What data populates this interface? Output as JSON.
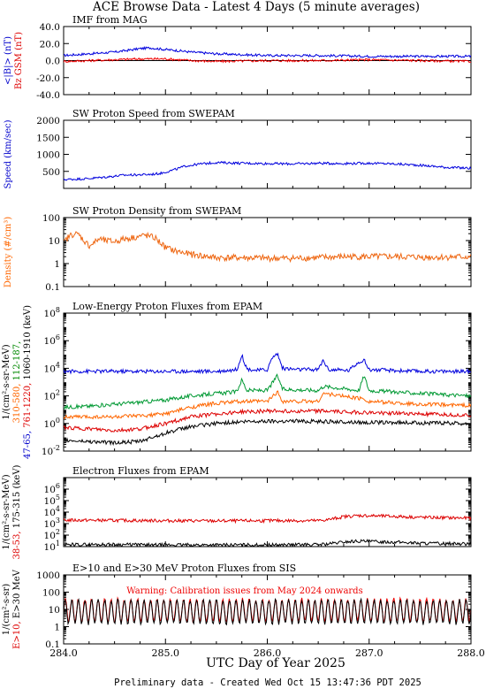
{
  "figure": {
    "title": "ACE Browse Data - Latest 4 Days (5 minute averages)",
    "xlabel": "UTC Day of Year 2025",
    "footer": "Preliminary data - Created Wed Oct 15 13:47:36 PDT 2025",
    "x_range": [
      284.0,
      288.0
    ],
    "x_ticks": [
      "284.0",
      "285.0",
      "286.0",
      "287.0",
      "288.0"
    ]
  },
  "chart_data": [
    {
      "type": "line",
      "title": "IMF from MAG",
      "ylabel_lines": [
        {
          "text": "<|B|> (nT)",
          "color": "#0000cc"
        },
        {
          "text": "Bz GSM (nT)",
          "color": "#dd0000"
        }
      ],
      "scale": "linear",
      "ylim": [
        -40.0,
        40.0
      ],
      "y_ticks": [
        "-40.0",
        "-20.0",
        "0.0",
        "20.0",
        "40.0"
      ],
      "zero_line": true,
      "series": [
        {
          "color": "#0000dd",
          "x": [
            284.0,
            284.25,
            284.5,
            284.75,
            284.85,
            285.0,
            285.1,
            285.25,
            285.5,
            285.75,
            286.0,
            286.5,
            287.0,
            287.5,
            288.0
          ],
          "y": [
            6,
            8,
            10,
            14,
            15,
            13,
            12,
            10,
            8,
            7,
            6,
            6,
            5,
            5,
            5
          ]
        },
        {
          "color": "#ee0000",
          "x": [
            284.0,
            284.25,
            284.5,
            284.75,
            285.0,
            285.25,
            285.5,
            286.0,
            286.5,
            287.0,
            287.5,
            288.0
          ],
          "y": [
            -1,
            0,
            1,
            2,
            2,
            0,
            -1,
            0,
            0,
            1,
            0,
            -1
          ]
        }
      ]
    },
    {
      "type": "line",
      "title": "SW Proton Speed from SWEPAM",
      "ylabel_lines": [
        {
          "text": "Speed (km/sec)",
          "color": "#0000cc"
        }
      ],
      "scale": "linear",
      "ylim": [
        0,
        2000
      ],
      "y_ticks": [
        "500",
        "1000",
        "1500",
        "2000"
      ],
      "series": [
        {
          "color": "#0000dd",
          "x": [
            284.0,
            284.1,
            284.25,
            284.4,
            284.5,
            284.6,
            284.75,
            284.85,
            284.95,
            285.0,
            285.1,
            285.2,
            285.35,
            285.5,
            285.75,
            286.0,
            286.25,
            286.5,
            286.75,
            287.0,
            287.25,
            287.5,
            287.75,
            288.0
          ],
          "y": [
            260,
            270,
            290,
            330,
            360,
            390,
            400,
            410,
            440,
            480,
            560,
            660,
            720,
            760,
            740,
            730,
            720,
            740,
            730,
            740,
            720,
            680,
            620,
            590
          ]
        }
      ]
    },
    {
      "type": "line",
      "title": "SW Proton Density from SWEPAM",
      "ylabel_lines": [
        {
          "text": "Density (#/cm³)",
          "color": "#ff6600"
        }
      ],
      "scale": "log",
      "ylim": [
        0.1,
        100
      ],
      "y_ticks": [
        "0.1",
        "1",
        "10",
        "100"
      ],
      "series": [
        {
          "color": "#ee6611",
          "x": [
            284.0,
            284.05,
            284.1,
            284.15,
            284.2,
            284.25,
            284.3,
            284.35,
            284.4,
            284.5,
            284.6,
            284.7,
            284.8,
            284.9,
            285.0,
            285.1,
            285.25,
            285.5,
            285.75,
            286.0,
            286.25,
            286.5,
            286.75,
            287.0,
            287.25,
            287.5,
            287.75,
            288.0
          ],
          "y": [
            8,
            15,
            20,
            18,
            10,
            6,
            8,
            12,
            10,
            9,
            12,
            14,
            17,
            13,
            5,
            3.5,
            2.5,
            1.8,
            1.8,
            1.7,
            1.7,
            1.8,
            2.0,
            2.0,
            2.0,
            1.9,
            1.9,
            2.0
          ]
        }
      ]
    },
    {
      "type": "line",
      "title": "Low-Energy Proton Fluxes from EPAM",
      "ylabel_lines": [
        {
          "text": "1/(cm²-s-sr-MeV)",
          "color": "#000000"
        },
        {
          "text": "310-580,",
          "color": "#ff6600"
        },
        {
          "text": "112-187,",
          "color": "#008800"
        },
        {
          "text": "47-65,",
          "color": "#0000cc"
        },
        {
          "text": "1060-1910 (keV)",
          "color": "#000000"
        },
        {
          "text": "761-1220,",
          "color": "#dd0000"
        }
      ],
      "scale": "log",
      "ylim": [
        0.01,
        100000000
      ],
      "y_ticks": [
        "10^-2",
        "10^0",
        "10^2",
        "10^4",
        "10^6",
        "10^8"
      ],
      "series": [
        {
          "name": "47-65",
          "color": "#0000dd",
          "x": [
            284.0,
            284.5,
            285.0,
            285.5,
            285.7,
            285.75,
            285.8,
            285.9,
            286.0,
            286.05,
            286.1,
            286.15,
            286.3,
            286.5,
            286.55,
            286.6,
            286.8,
            286.9,
            286.95,
            287.0,
            287.2,
            287.5,
            288.0
          ],
          "y": [
            6000,
            6000,
            6000,
            6000,
            8000,
            90000,
            9000,
            7000,
            8000,
            60000,
            120000,
            10000,
            8000,
            8000,
            40000,
            8000,
            7000,
            30000,
            40000,
            8000,
            7000,
            6000,
            6000
          ]
        },
        {
          "name": "112-187",
          "color": "#009933",
          "x": [
            284.0,
            284.25,
            284.5,
            284.75,
            285.0,
            285.25,
            285.5,
            285.7,
            285.75,
            285.8,
            286.0,
            286.1,
            286.15,
            286.5,
            286.55,
            286.9,
            286.95,
            287.0,
            287.5,
            288.0
          ],
          "y": [
            15,
            18,
            25,
            35,
            50,
            100,
            150,
            200,
            1500,
            250,
            250,
            3000,
            300,
            250,
            500,
            250,
            3000,
            250,
            150,
            100
          ]
        },
        {
          "name": "310-580",
          "color": "#ff6600",
          "x": [
            284.0,
            284.25,
            284.5,
            284.75,
            285.0,
            285.25,
            285.5,
            285.75,
            286.0,
            286.1,
            286.15,
            286.5,
            286.55,
            286.95,
            287.0,
            287.5,
            288.0
          ],
          "y": [
            3,
            3,
            3,
            3.5,
            5,
            15,
            30,
            40,
            40,
            200,
            40,
            40,
            150,
            60,
            40,
            25,
            20
          ]
        },
        {
          "name": "761-1220",
          "color": "#dd0000",
          "x": [
            284.0,
            284.25,
            284.5,
            284.75,
            285.0,
            285.25,
            285.5,
            285.75,
            286.0,
            286.25,
            286.5,
            286.75,
            287.0,
            287.5,
            288.0
          ],
          "y": [
            0.5,
            0.4,
            0.3,
            0.4,
            1,
            3,
            5,
            7,
            8,
            8,
            8,
            7,
            6,
            5,
            4
          ]
        },
        {
          "name": "1060-1910",
          "color": "#000000",
          "x": [
            284.0,
            284.25,
            284.5,
            284.75,
            285.0,
            285.25,
            285.5,
            285.75,
            286.0,
            286.25,
            286.5,
            286.75,
            287.0,
            287.5,
            288.0
          ],
          "y": [
            0.06,
            0.05,
            0.04,
            0.05,
            0.2,
            0.6,
            1,
            1.3,
            1.5,
            1.5,
            1.4,
            1.3,
            1.2,
            1.1,
            1
          ]
        }
      ]
    },
    {
      "type": "line",
      "title": "Electron Fluxes from EPAM",
      "ylabel_lines": [
        {
          "text": "1/(cm²-s-sr-MeV)",
          "color": "#000000"
        },
        {
          "text": "175-315 (keV)",
          "color": "#000000"
        },
        {
          "text": "38-53,",
          "color": "#dd0000"
        }
      ],
      "scale": "log",
      "ylim": [
        10,
        10000000
      ],
      "y_ticks": [
        "10^1",
        "10^2",
        "10^3",
        "10^4",
        "10^5",
        "10^6"
      ],
      "series": [
        {
          "name": "38-53",
          "color": "#dd0000",
          "x": [
            284.0,
            284.5,
            285.0,
            285.5,
            286.0,
            286.5,
            286.6,
            286.75,
            286.9,
            287.0,
            287.25,
            287.5,
            288.0
          ],
          "y": [
            2000,
            1900,
            1800,
            1700,
            1800,
            1800,
            2200,
            4000,
            5000,
            4800,
            4200,
            3500,
            3000
          ]
        },
        {
          "name": "175-315",
          "color": "#000000",
          "x": [
            284.0,
            284.5,
            285.0,
            285.5,
            286.0,
            286.5,
            286.6,
            286.75,
            286.9,
            287.0,
            287.25,
            287.5,
            288.0
          ],
          "y": [
            15,
            15,
            14,
            14,
            14,
            15,
            17,
            25,
            30,
            28,
            25,
            20,
            17
          ]
        }
      ]
    },
    {
      "type": "line",
      "title": "E>10 and E>30 MeV Proton Fluxes from SIS",
      "ylabel_lines": [
        {
          "text": "1/(cm²-s-sr)",
          "color": "#000000"
        },
        {
          "text": "E>10,",
          "color": "#dd0000"
        },
        {
          "text": "E>30 MeV",
          "color": "#000000"
        }
      ],
      "annotation": "Warning: Calibration issues from May 2024 onwards",
      "scale": "log",
      "ylim": [
        0.1,
        1000
      ],
      "y_ticks": [
        "0.1",
        "1",
        "10",
        "100",
        "1000"
      ],
      "series": [
        {
          "name": "E>10",
          "color": "#ee0000",
          "x": [
            284.0,
            288.0
          ],
          "y": [
            8,
            8
          ],
          "oscillation": {
            "low": 2,
            "high": 40,
            "cycles": 62
          }
        },
        {
          "name": "E>30",
          "color": "#000000",
          "x": [
            284.0,
            288.0
          ],
          "y": [
            6,
            6
          ],
          "oscillation": {
            "low": 1.5,
            "high": 35,
            "cycles": 62
          }
        }
      ]
    }
  ]
}
